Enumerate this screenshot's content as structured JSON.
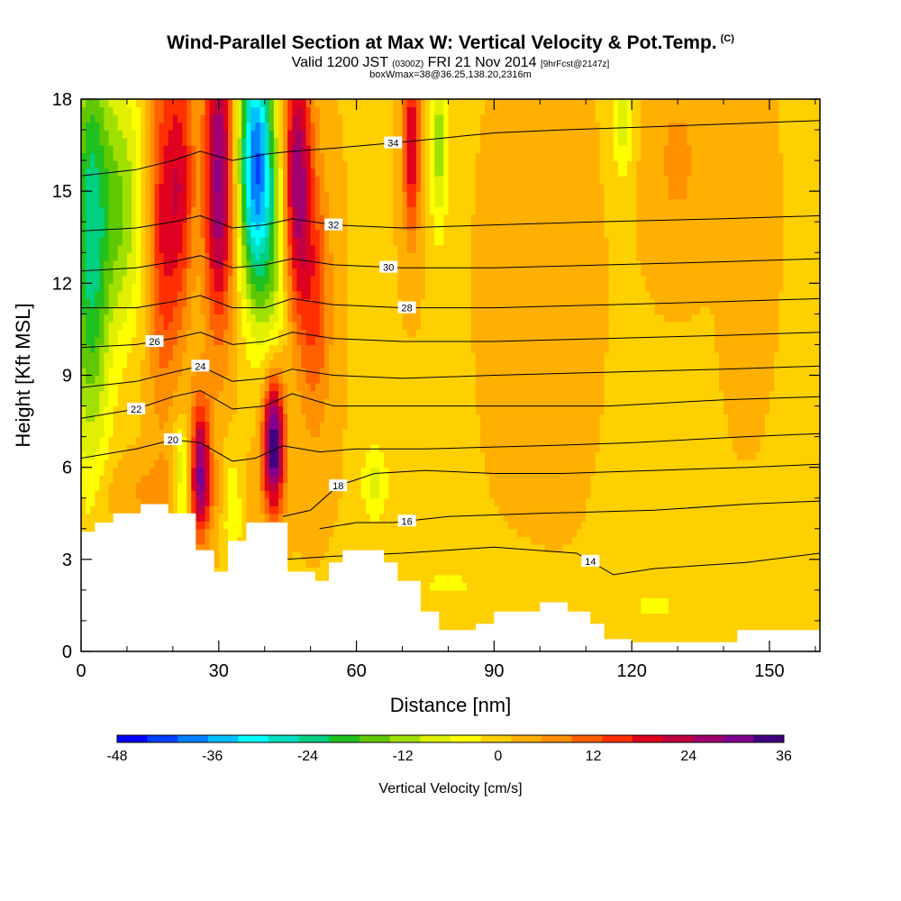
{
  "chart_data": {
    "type": "heatmap",
    "title": "Wind-Parallel Section at Max W: Vertical Velocity & Pot.Temp.",
    "title_mark": "(C)",
    "subtitle_parts": [
      "Valid 1200 JST ",
      "(0300Z)",
      " FRI 21 Nov 2014 ",
      "[9hrFcst@2147z]"
    ],
    "subtitle2": "boxWmax=38@36.25,138.20,2316m",
    "xlabel": "Distance [nm]",
    "ylabel": "Height [Kft MSL]",
    "xlim": [
      0,
      161
    ],
    "ylim": [
      0,
      18
    ],
    "x_ticks": [
      "0",
      "30",
      "60",
      "90",
      "120",
      "150"
    ],
    "x_tick_values": [
      0,
      30,
      60,
      90,
      120,
      150
    ],
    "y_ticks": [
      "0",
      "3",
      "6",
      "9",
      "12",
      "15",
      "18"
    ],
    "y_tick_values": [
      0,
      3,
      6,
      9,
      12,
      15,
      18
    ],
    "grid": false,
    "colorbar": {
      "label": "Vertical Velocity [cm/s]",
      "min": -48,
      "max": 36,
      "step": 6,
      "tick_labels": [
        "-48",
        "-36",
        "-24",
        "-12",
        "0",
        "12",
        "24",
        "36"
      ],
      "tick_values": [
        -48,
        -36,
        -24,
        -12,
        0,
        12,
        24,
        36
      ],
      "colors": [
        "#0000ff",
        "#0040ff",
        "#0080ff",
        "#00c0ff",
        "#00ffff",
        "#00e0c0",
        "#00d080",
        "#20c020",
        "#60c800",
        "#a0e000",
        "#e0f000",
        "#ffff00",
        "#ffd000",
        "#ffb000",
        "#ff9000",
        "#ff6000",
        "#ff3000",
        "#e00020",
        "#c00040",
        "#a00070",
        "#800090",
        "#400080"
      ]
    },
    "terrain_color": "#ffffff",
    "terrain_kft": [
      [
        0,
        3.9
      ],
      [
        3,
        4.2
      ],
      [
        7,
        4.5
      ],
      [
        13,
        4.8
      ],
      [
        19,
        4.5
      ],
      [
        25,
        3.3
      ],
      [
        29,
        2.6
      ],
      [
        32,
        3.6
      ],
      [
        35,
        3.6
      ],
      [
        36,
        4.2
      ],
      [
        42,
        4.2
      ],
      [
        45,
        2.6
      ],
      [
        49,
        2.6
      ],
      [
        51,
        2.3
      ],
      [
        54,
        2.9
      ],
      [
        57,
        3.3
      ],
      [
        63,
        3.3
      ],
      [
        66,
        2.9
      ],
      [
        69,
        2.3
      ],
      [
        74,
        1.3
      ],
      [
        78,
        0.7
      ],
      [
        81,
        0.7
      ],
      [
        86,
        0.9
      ],
      [
        88,
        0.9
      ],
      [
        90,
        1.3
      ],
      [
        95,
        1.3
      ],
      [
        100,
        1.6
      ],
      [
        104,
        1.6
      ],
      [
        106,
        1.3
      ],
      [
        111,
        0.9
      ],
      [
        114,
        0.4
      ],
      [
        120,
        0.3
      ],
      [
        124,
        0.3
      ],
      [
        141,
        0.3
      ],
      [
        143,
        0.7
      ],
      [
        150,
        0.7
      ],
      [
        161,
        0.7
      ]
    ],
    "w_features": [
      {
        "x": 2,
        "y": 13.5,
        "sx": 3,
        "sy": 5,
        "w": -24
      },
      {
        "x": 9,
        "y": 14.5,
        "sx": 3.5,
        "sy": 3,
        "w": -14
      },
      {
        "x": 18,
        "y": 14,
        "sx": 2.5,
        "sy": 4,
        "w": 16
      },
      {
        "x": 22,
        "y": 15.5,
        "sx": 2,
        "sy": 3,
        "w": 14
      },
      {
        "x": 30,
        "y": 15.5,
        "sx": 2.2,
        "sy": 3.5,
        "w": 28
      },
      {
        "x": 38,
        "y": 16,
        "sx": 2.5,
        "sy": 3,
        "w": -40
      },
      {
        "x": 42,
        "y": 13.5,
        "sx": 2.5,
        "sy": 3,
        "w": -12
      },
      {
        "x": 47,
        "y": 15.5,
        "sx": 2.2,
        "sy": 3,
        "w": 26
      },
      {
        "x": 51,
        "y": 11.5,
        "sx": 2.5,
        "sy": 3,
        "w": 12
      },
      {
        "x": 26,
        "y": 6,
        "sx": 1.5,
        "sy": 1.6,
        "w": 26
      },
      {
        "x": 22,
        "y": 5.6,
        "sx": 1.5,
        "sy": 1.2,
        "w": -14
      },
      {
        "x": 42,
        "y": 6.8,
        "sx": 1.6,
        "sy": 1.5,
        "w": 36
      },
      {
        "x": 33,
        "y": 4.8,
        "sx": 1.5,
        "sy": 1.2,
        "w": -10
      },
      {
        "x": 64,
        "y": 5.5,
        "sx": 2,
        "sy": 0.9,
        "w": -9
      },
      {
        "x": 72,
        "y": 16.5,
        "sx": 1.3,
        "sy": 2,
        "w": 20
      },
      {
        "x": 78,
        "y": 16.5,
        "sx": 1.3,
        "sy": 2,
        "w": -14
      },
      {
        "x": 118,
        "y": 17.5,
        "sx": 1.5,
        "sy": 1.5,
        "w": -10
      },
      {
        "x": 130,
        "y": 16,
        "sx": 4,
        "sy": 2,
        "w": 5
      },
      {
        "x": 145,
        "y": 14,
        "sx": 3,
        "sy": 3,
        "w": 4
      },
      {
        "x": 100,
        "y": 12,
        "sx": 6,
        "sy": 4,
        "w": 3
      },
      {
        "x": 20,
        "y": 5.2,
        "sx": 12,
        "sy": 0.8,
        "w": 5
      },
      {
        "x": 125,
        "y": 1.5,
        "sx": 8,
        "sy": 0.8,
        "w": -4
      },
      {
        "x": 80,
        "y": 2.2,
        "sx": 10,
        "sy": 0.8,
        "w": -4
      }
    ],
    "theta_lines": [
      {
        "level": 14,
        "label": "14",
        "pts": [
          [
            34,
            2.9
          ],
          [
            55,
            3.1
          ],
          [
            70,
            3.2
          ],
          [
            90,
            3.4
          ],
          [
            108,
            3.2
          ],
          [
            116,
            2.5
          ],
          [
            125,
            2.7
          ],
          [
            145,
            2.9
          ],
          [
            161,
            3.2
          ]
        ],
        "label_x": 111
      },
      {
        "level": 16,
        "label": "16",
        "pts": [
          [
            52,
            4.0
          ],
          [
            60,
            4.2
          ],
          [
            68,
            4.2
          ],
          [
            80,
            4.4
          ],
          [
            100,
            4.5
          ],
          [
            125,
            4.6
          ],
          [
            145,
            4.8
          ],
          [
            161,
            4.9
          ]
        ],
        "label_x": 71
      },
      {
        "level": 18,
        "label": "18",
        "pts": [
          [
            44,
            4.4
          ],
          [
            50,
            4.6
          ],
          [
            56,
            5.4
          ],
          [
            64,
            5.8
          ],
          [
            75,
            5.9
          ],
          [
            90,
            5.8
          ],
          [
            105,
            5.8
          ],
          [
            125,
            5.9
          ],
          [
            145,
            6.0
          ],
          [
            161,
            6.1
          ]
        ],
        "label_x": 56
      },
      {
        "level": 20,
        "label": "20",
        "pts": [
          [
            0,
            6.3
          ],
          [
            12,
            6.6
          ],
          [
            20,
            6.9
          ],
          [
            26,
            6.8
          ],
          [
            33,
            6.2
          ],
          [
            38,
            6.3
          ],
          [
            44,
            6.7
          ],
          [
            52,
            6.5
          ],
          [
            60,
            6.6
          ],
          [
            75,
            6.6
          ],
          [
            100,
            6.7
          ],
          [
            120,
            6.8
          ],
          [
            145,
            7.0
          ],
          [
            161,
            7.1
          ]
        ],
        "label_x": 20
      },
      {
        "level": 22,
        "label": "22",
        "pts": [
          [
            0,
            7.6
          ],
          [
            12,
            7.9
          ],
          [
            20,
            8.3
          ],
          [
            26,
            8.5
          ],
          [
            33,
            7.9
          ],
          [
            40,
            8.0
          ],
          [
            46,
            8.4
          ],
          [
            55,
            8.0
          ],
          [
            70,
            8.0
          ],
          [
            90,
            8.0
          ],
          [
            115,
            8.0
          ],
          [
            140,
            8.2
          ],
          [
            161,
            8.3
          ]
        ],
        "label_x": 12
      },
      {
        "level": 24,
        "label": "24",
        "pts": [
          [
            0,
            8.6
          ],
          [
            12,
            8.8
          ],
          [
            20,
            9.1
          ],
          [
            26,
            9.3
          ],
          [
            33,
            8.8
          ],
          [
            40,
            8.9
          ],
          [
            46,
            9.2
          ],
          [
            55,
            9.0
          ],
          [
            70,
            8.9
          ],
          [
            90,
            9.0
          ],
          [
            115,
            9.1
          ],
          [
            140,
            9.2
          ],
          [
            161,
            9.3
          ]
        ],
        "label_x": 26
      },
      {
        "level": 26,
        "label": "26",
        "pts": [
          [
            0,
            9.9
          ],
          [
            12,
            10.0
          ],
          [
            20,
            10.2
          ],
          [
            26,
            10.4
          ],
          [
            33,
            10.0
          ],
          [
            40,
            10.1
          ],
          [
            46,
            10.4
          ],
          [
            55,
            10.2
          ],
          [
            70,
            10.1
          ],
          [
            90,
            10.1
          ],
          [
            115,
            10.2
          ],
          [
            140,
            10.3
          ],
          [
            161,
            10.4
          ]
        ],
        "label_x": 16
      },
      {
        "level": 28,
        "label": "28",
        "pts": [
          [
            0,
            11.2
          ],
          [
            12,
            11.2
          ],
          [
            20,
            11.4
          ],
          [
            26,
            11.6
          ],
          [
            33,
            11.2
          ],
          [
            40,
            11.2
          ],
          [
            46,
            11.5
          ],
          [
            55,
            11.3
          ],
          [
            70,
            11.2
          ],
          [
            90,
            11.2
          ],
          [
            115,
            11.3
          ],
          [
            140,
            11.4
          ],
          [
            161,
            11.5
          ]
        ],
        "label_x": 71
      },
      {
        "level": 30,
        "label": "30",
        "pts": [
          [
            0,
            12.4
          ],
          [
            12,
            12.5
          ],
          [
            20,
            12.7
          ],
          [
            26,
            12.9
          ],
          [
            33,
            12.5
          ],
          [
            40,
            12.6
          ],
          [
            46,
            12.8
          ],
          [
            55,
            12.6
          ],
          [
            70,
            12.5
          ],
          [
            90,
            12.5
          ],
          [
            115,
            12.6
          ],
          [
            140,
            12.7
          ],
          [
            161,
            12.8
          ]
        ],
        "label_x": 67
      },
      {
        "level": 32,
        "label": "32",
        "pts": [
          [
            0,
            13.7
          ],
          [
            12,
            13.8
          ],
          [
            20,
            14.0
          ],
          [
            26,
            14.2
          ],
          [
            33,
            13.8
          ],
          [
            40,
            13.9
          ],
          [
            46,
            14.1
          ],
          [
            55,
            13.9
          ],
          [
            70,
            13.8
          ],
          [
            90,
            13.9
          ],
          [
            112,
            14.0
          ],
          [
            140,
            14.1
          ],
          [
            161,
            14.2
          ]
        ],
        "label_x": 55
      },
      {
        "level": 34,
        "label": "34",
        "pts": [
          [
            0,
            15.5
          ],
          [
            12,
            15.7
          ],
          [
            20,
            16.0
          ],
          [
            26,
            16.3
          ],
          [
            33,
            16.0
          ],
          [
            40,
            16.2
          ],
          [
            46,
            16.3
          ],
          [
            55,
            16.4
          ],
          [
            70,
            16.6
          ],
          [
            90,
            16.9
          ],
          [
            105,
            17.0
          ],
          [
            125,
            17.1
          ],
          [
            161,
            17.3
          ]
        ],
        "label_x": 68
      }
    ]
  }
}
